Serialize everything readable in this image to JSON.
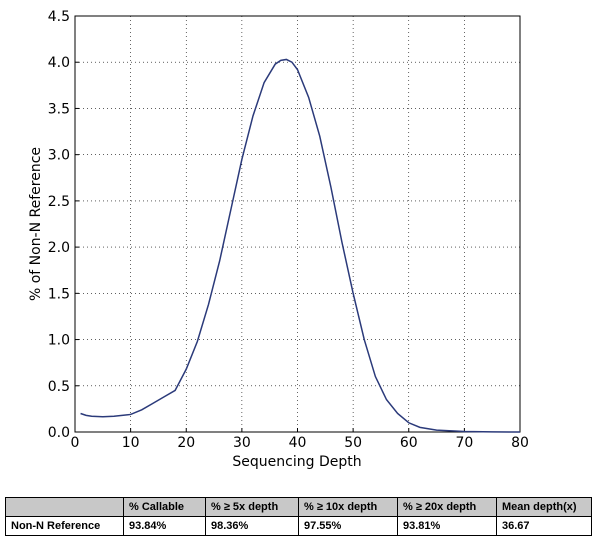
{
  "chart_data": {
    "type": "line",
    "x_label": "Sequencing Depth",
    "y_label": "% of Non-N Reference",
    "x": [
      1,
      2,
      3,
      5,
      7,
      10,
      12,
      14,
      16,
      18,
      20,
      22,
      24,
      26,
      28,
      30,
      32,
      34,
      36,
      37,
      38,
      39,
      40,
      42,
      44,
      46,
      48,
      50,
      52,
      54,
      56,
      58,
      60,
      62,
      65,
      70,
      75,
      80
    ],
    "values": [
      0.2,
      0.18,
      0.17,
      0.165,
      0.17,
      0.19,
      0.24,
      0.31,
      0.38,
      0.45,
      0.68,
      0.98,
      1.38,
      1.85,
      2.4,
      2.95,
      3.42,
      3.78,
      3.98,
      4.02,
      4.03,
      4.0,
      3.92,
      3.62,
      3.2,
      2.65,
      2.05,
      1.5,
      1.0,
      0.6,
      0.35,
      0.2,
      0.1,
      0.05,
      0.02,
      0.005,
      0.001,
      0
    ],
    "color": "#2b3a7a",
    "xlim": [
      0,
      80
    ],
    "xticks": [
      0,
      10,
      20,
      30,
      40,
      50,
      60,
      70,
      80
    ],
    "ylim": [
      0,
      4.5
    ],
    "yticks": [
      {
        "value": 0,
        "label": "0.0"
      },
      0.5,
      {
        "value": 1,
        "label": "1.0"
      },
      1.5,
      {
        "value": 2,
        "label": "2.0"
      },
      2.5,
      {
        "value": 3,
        "label": "3.0"
      },
      3.5,
      {
        "value": 4,
        "label": "4.0"
      },
      4.5
    ],
    "grid": true
  },
  "table": {
    "columns": [
      "% Callable",
      "% ≥ 5x depth",
      "% ≥ 10x depth",
      "% ≥ 20x depth",
      "Mean depth(x)"
    ],
    "rows": [
      [
        "Non-N Reference",
        "93.84%",
        "98.36%",
        "97.55%",
        "93.81%",
        "36.67"
      ]
    ]
  }
}
